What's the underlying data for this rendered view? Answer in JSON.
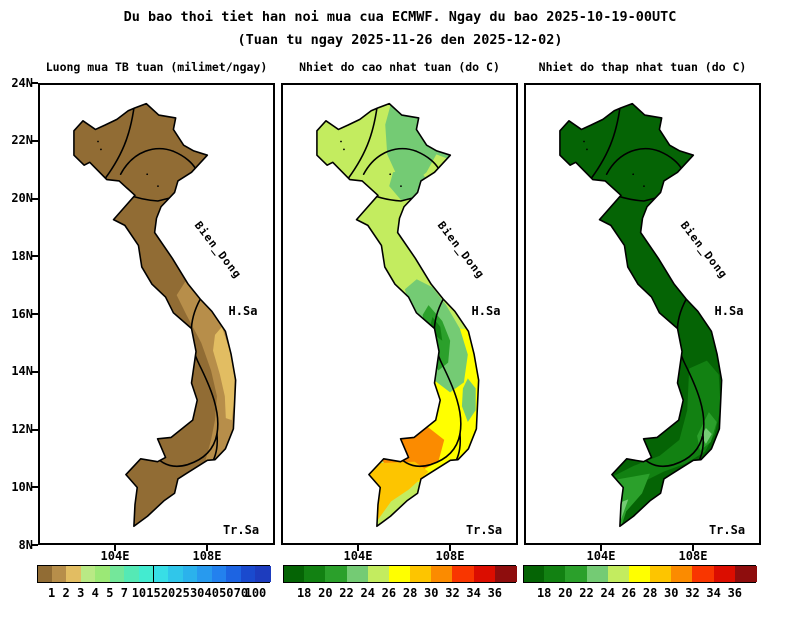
{
  "header": {
    "title_line1": "Du bao thoi tiet han noi mua cua ECMWF. Ngay du bao 2025-10-19-00UTC",
    "title_line2": "(Tuan tu ngay 2025-11-26 den 2025-12-02)"
  },
  "axes": {
    "lat_labels": [
      "24N",
      "22N",
      "20N",
      "18N",
      "16N",
      "14N",
      "12N",
      "10N",
      "8N"
    ],
    "lon_labels": [
      "104E",
      "108E"
    ]
  },
  "panels": [
    {
      "id": "rain",
      "title": "Luong mua TB tuan (milimet/ngay)",
      "sea_label": "Bien_Dong",
      "paracel_label": "H.Sa",
      "spratly_label": "Tr.Sa"
    },
    {
      "id": "tmax",
      "title": "Nhiet do cao nhat tuan (do C)",
      "sea_label": "Bien_Dong",
      "paracel_label": "H.Sa",
      "spratly_label": "Tr.Sa"
    },
    {
      "id": "tmin",
      "title": "Nhiet do thap nhat tuan (do C)",
      "sea_label": "Bien_Dong",
      "paracel_label": "H.Sa",
      "spratly_label": "Tr.Sa"
    }
  ],
  "colorbars": [
    {
      "panel": "rain",
      "tick_labels": [
        "1",
        "2",
        "3",
        "4",
        "5",
        "7",
        "10",
        "15",
        "20",
        "25",
        "30",
        "40",
        "50",
        "70",
        "100"
      ],
      "colors": [
        "#916c34",
        "#b78e4a",
        "#e2bd62",
        "#b9e985",
        "#9be876",
        "#74e79a",
        "#55e9b5",
        "#43ebd0",
        "#38dee6",
        "#30c6ea",
        "#2bb2ec",
        "#289aee",
        "#2381ee",
        "#1d64e2",
        "#1a4ace",
        "#1d3cbe"
      ]
    },
    {
      "panel": "tmax",
      "tick_labels": [
        "18",
        "20",
        "22",
        "24",
        "26",
        "28",
        "30",
        "32",
        "34",
        "36"
      ],
      "colors": [
        "#056405",
        "#128112",
        "#2ba02b",
        "#74cb74",
        "#c3ec5f",
        "#ffff00",
        "#fdc500",
        "#fb8b00",
        "#f93600",
        "#db0d00",
        "#8e0d0d"
      ]
    },
    {
      "panel": "tmin",
      "tick_labels": [
        "18",
        "20",
        "22",
        "24",
        "26",
        "28",
        "30",
        "32",
        "34",
        "36"
      ],
      "colors": [
        "#056405",
        "#128112",
        "#2ba02b",
        "#74cb74",
        "#c3ec5f",
        "#ffff00",
        "#fdc500",
        "#fb8b00",
        "#f93600",
        "#db0d00",
        "#8e0d0d"
      ]
    }
  ],
  "map_fills": {
    "rain": {
      "base": "#916c34",
      "coast_band": "#b78e4a",
      "coast_strip": "#e2bd62"
    },
    "tmax": {
      "base": "#c3ec5f",
      "green_mid": "#74cb74",
      "green_dark": "#2ba02b",
      "green_darker": "#128112",
      "yellow": "#ffff00",
      "amber": "#fdc500",
      "orange": "#fb8b00"
    },
    "tmin": {
      "base": "#056405",
      "band": "#128112",
      "delta": "#2ba02b",
      "tip": "#74cb74"
    }
  },
  "line_color": "#000000"
}
